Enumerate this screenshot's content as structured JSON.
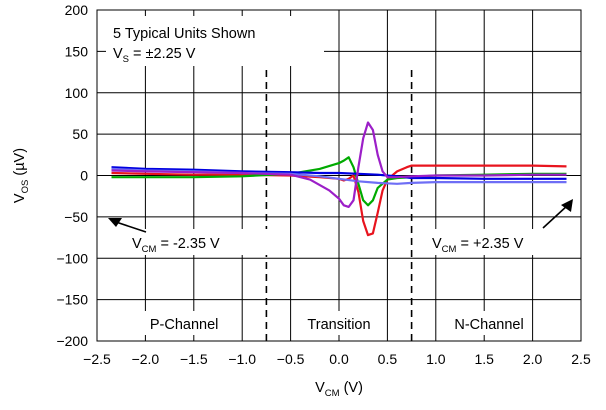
{
  "chart_data": {
    "type": "line",
    "xlabel": {
      "main": "V",
      "sub": "CM",
      "tail": " (V)"
    },
    "ylabel": {
      "main": "V",
      "sub": "OS",
      "tail": " (µV)"
    },
    "xlim": [
      -2.5,
      2.5
    ],
    "ylim": [
      -200,
      200
    ],
    "xticks": [
      -2.5,
      -2.0,
      -1.5,
      -1.0,
      -0.5,
      0.0,
      0.5,
      1.0,
      1.5,
      2.0,
      2.5
    ],
    "xtick_labels": [
      "−2.5",
      "−2.0",
      "−1.5",
      "−1.0",
      "−0.5",
      "0.0",
      "0.5",
      "1.0",
      "1.5",
      "2.0",
      "2.5"
    ],
    "yticks": [
      200,
      150,
      100,
      50,
      0,
      -50,
      -100,
      -150,
      -200
    ],
    "ytick_labels": [
      "200",
      "150",
      "100",
      "50",
      "0",
      "−50",
      "−100",
      "−150",
      "−200"
    ],
    "grid": true,
    "legend": "none",
    "region_boundaries": [
      -0.75,
      0.75
    ],
    "regions": [
      "P-Channel",
      "Transition",
      "N-Channel"
    ],
    "annotations": {
      "units_line1": "5 Typical Units Shown",
      "units_line2": {
        "main": "V",
        "sub": "S",
        "tail": " = ±2.25 V"
      },
      "left_arrow": {
        "main": "V",
        "sub": "CM",
        "tail": " = -2.35 V"
      },
      "right_arrow": {
        "main": "V",
        "sub": "CM",
        "tail": " = +2.35 V"
      }
    },
    "series": [
      {
        "color": "#e8141e",
        "x": [
          -2.35,
          -2.0,
          -1.5,
          -1.0,
          -0.5,
          -0.2,
          0.0,
          0.05,
          0.1,
          0.15,
          0.2,
          0.25,
          0.3,
          0.35,
          0.4,
          0.45,
          0.5,
          0.6,
          0.7,
          0.75,
          1.0,
          1.5,
          2.0,
          2.35
        ],
        "y": [
          3,
          2,
          1,
          1,
          0,
          -2,
          -4,
          -6,
          -4,
          0,
          -20,
          -55,
          -72,
          -70,
          -45,
          -18,
          -5,
          5,
          10,
          12,
          12,
          12,
          12,
          11
        ]
      },
      {
        "color": "#00aa00",
        "x": [
          -2.35,
          -2.0,
          -1.5,
          -1.0,
          -0.5,
          -0.2,
          0.0,
          0.05,
          0.1,
          0.15,
          0.2,
          0.25,
          0.3,
          0.35,
          0.4,
          0.5,
          0.6,
          0.75,
          1.0,
          1.5,
          2.0,
          2.35
        ],
        "y": [
          -2,
          -2,
          -2,
          -1,
          2,
          8,
          15,
          18,
          22,
          10,
          -10,
          -30,
          -36,
          -30,
          -15,
          -5,
          -3,
          -2,
          0,
          1,
          2,
          2
        ]
      },
      {
        "color": "#0000e0",
        "x": [
          -2.35,
          -2.0,
          -1.5,
          -1.0,
          -0.5,
          -0.2,
          0.0,
          0.2,
          0.4,
          0.6,
          0.75,
          1.0,
          1.5,
          2.0,
          2.35
        ],
        "y": [
          10,
          8,
          7,
          5,
          4,
          3,
          3,
          2,
          1,
          -1,
          -3,
          -3,
          -4,
          -4,
          -4
        ]
      },
      {
        "color": "#6e6ef5",
        "x": [
          -2.35,
          -2.0,
          -1.5,
          -1.0,
          -0.5,
          -0.2,
          0.0,
          0.2,
          0.4,
          0.6,
          0.75,
          1.0,
          1.5,
          2.0,
          2.35
        ],
        "y": [
          8,
          6,
          5,
          3,
          2,
          -1,
          -4,
          -7,
          -9,
          -10,
          -9,
          -8,
          -8,
          -8,
          -8
        ]
      },
      {
        "color": "#9c1fc8",
        "x": [
          -2.35,
          -2.0,
          -1.5,
          -1.0,
          -0.5,
          -0.3,
          -0.1,
          0.0,
          0.05,
          0.1,
          0.15,
          0.2,
          0.25,
          0.3,
          0.35,
          0.4,
          0.45,
          0.5,
          0.6,
          0.75,
          1.0,
          1.5,
          2.0,
          2.35
        ],
        "y": [
          6,
          5,
          4,
          3,
          1,
          -5,
          -18,
          -28,
          -36,
          -38,
          -30,
          10,
          45,
          64,
          55,
          25,
          5,
          -2,
          -2,
          -1,
          0,
          0,
          1,
          1
        ]
      }
    ]
  }
}
